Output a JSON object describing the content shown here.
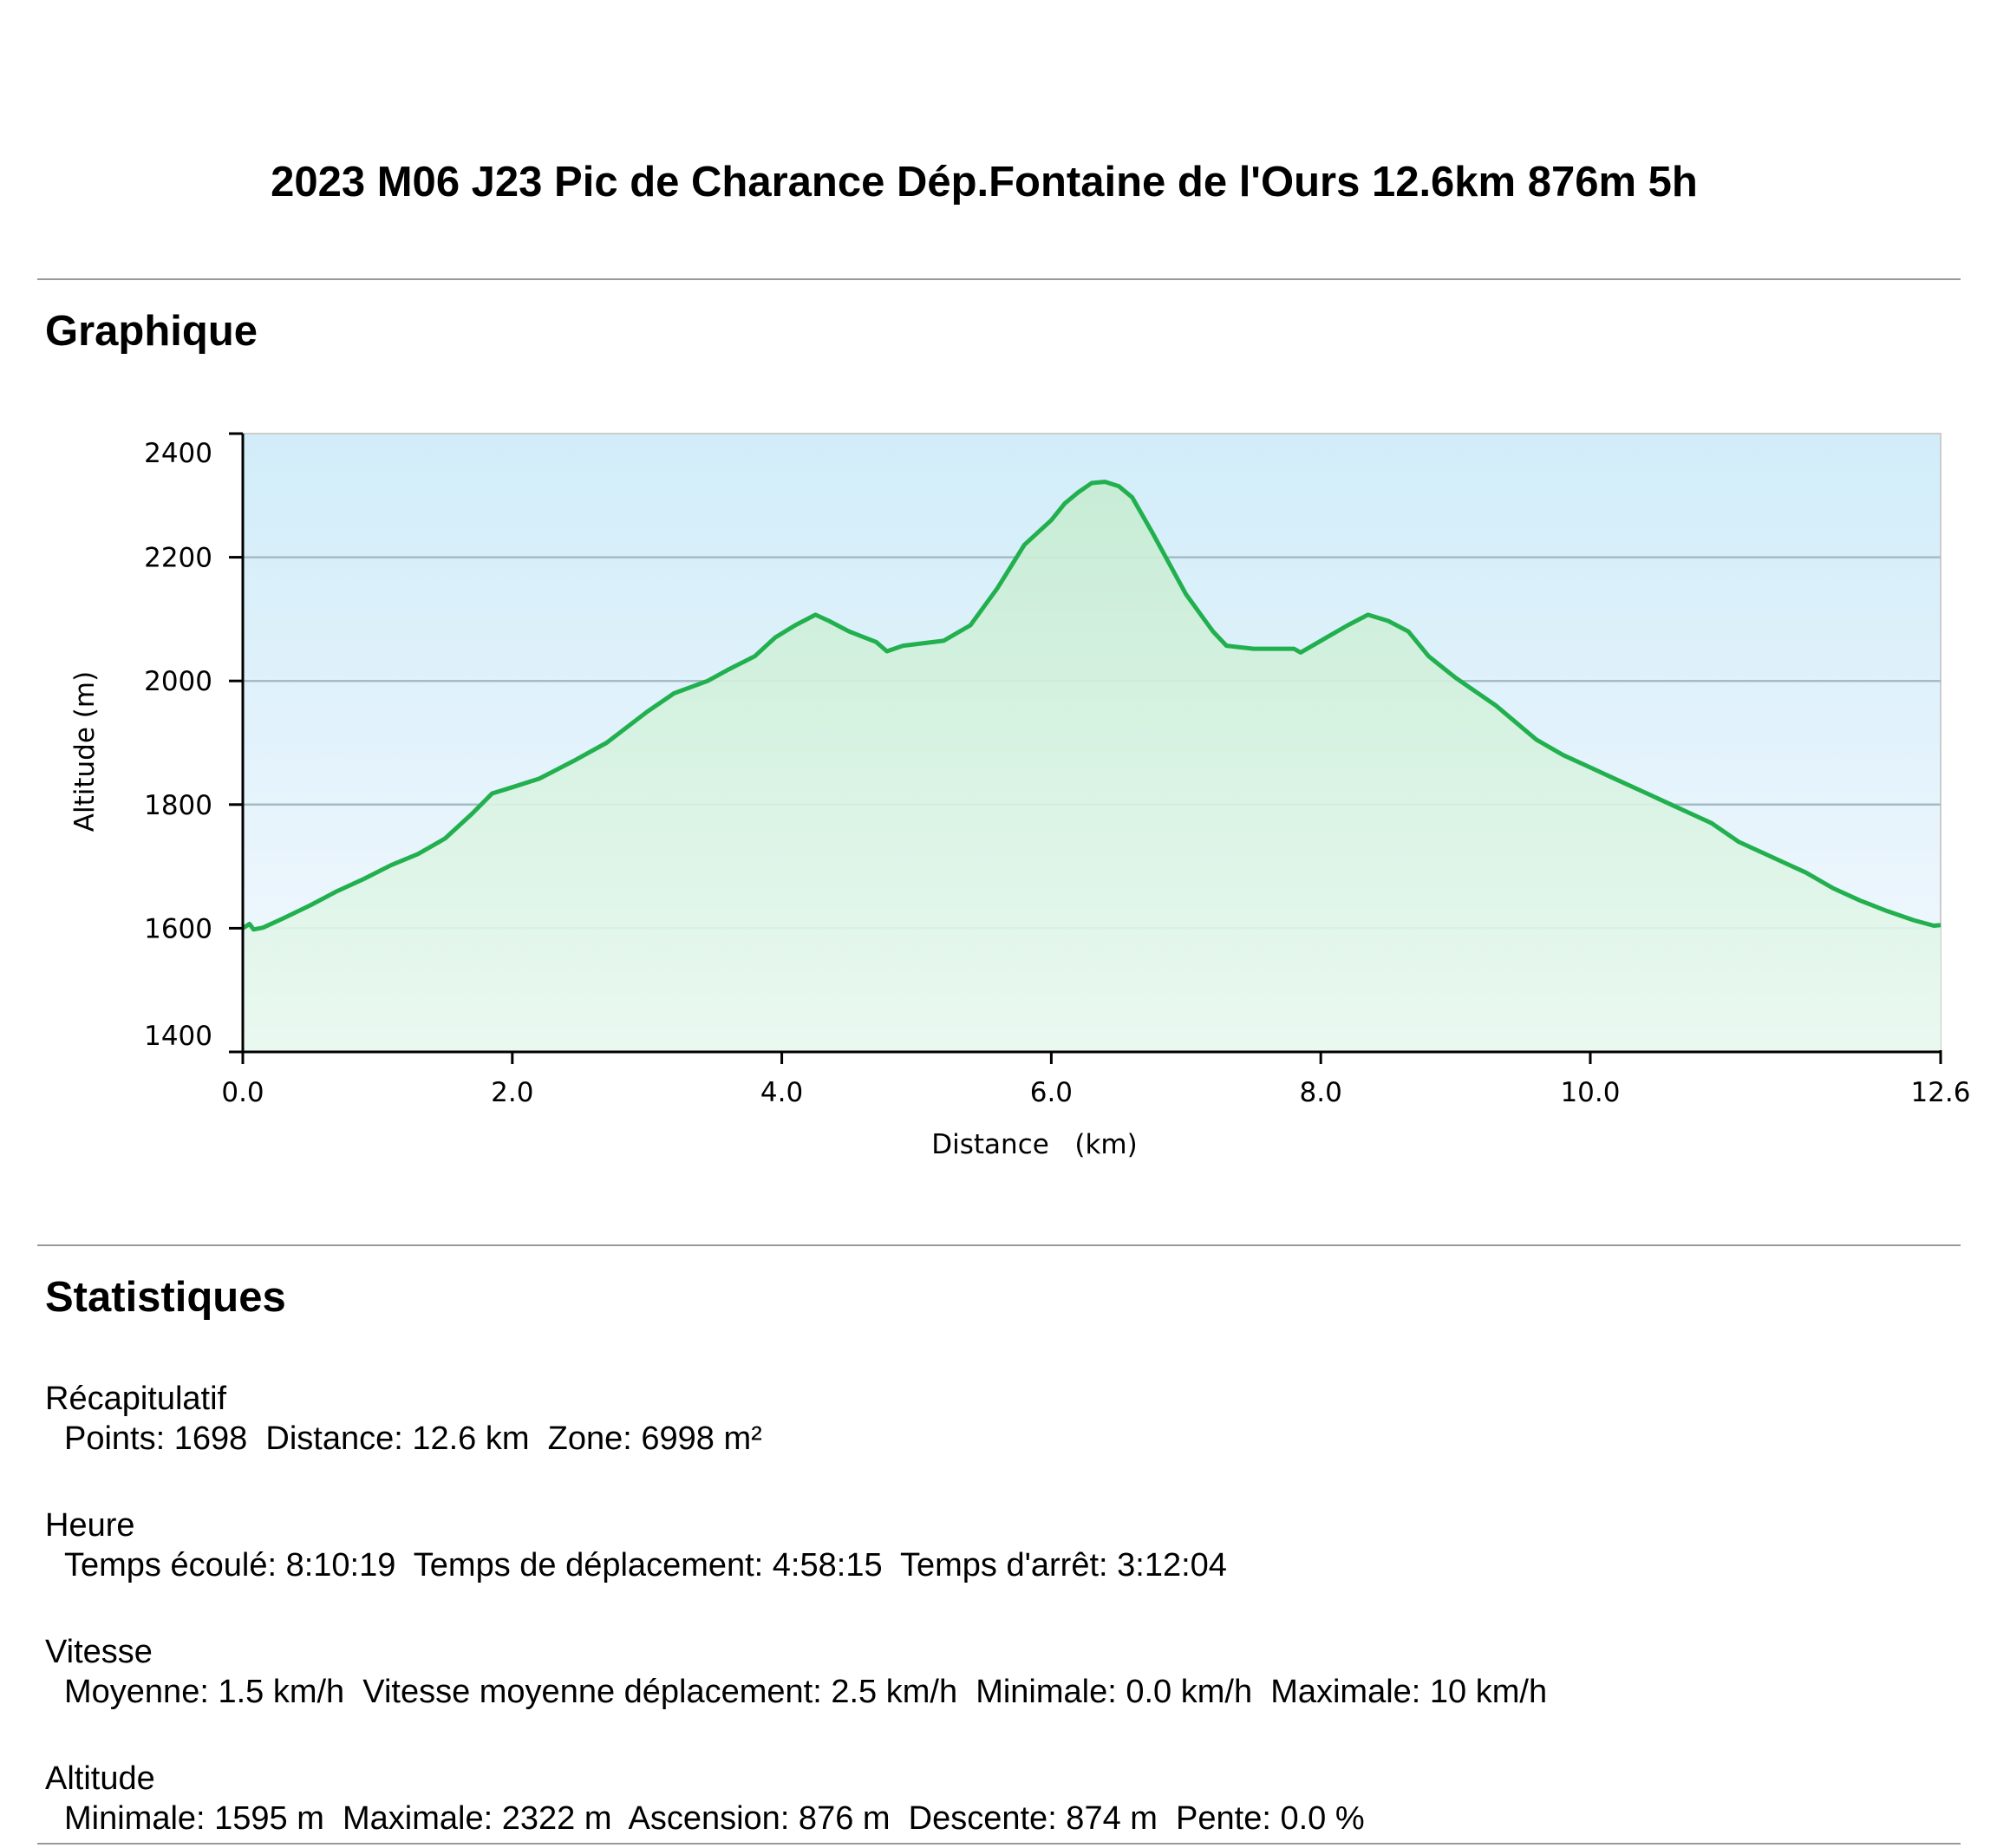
{
  "page": {
    "title": "2023 M06 J23 Pic de Charance Dép.Fontaine de l'Ours 12.6km 876m 5h"
  },
  "sections": {
    "graph_heading": "Graphique",
    "stats_heading": "Statistiques"
  },
  "chart_data": {
    "type": "area",
    "xlabel": "Distance   (km)",
    "ylabel": "Altitude (m)",
    "xlim": [
      0,
      12.6
    ],
    "ylim": [
      1400,
      2400
    ],
    "x_ticks": [
      "0.0",
      "2.0",
      "4.0",
      "6.0",
      "8.0",
      "10.0",
      "12.6"
    ],
    "x_tick_values": [
      0,
      2,
      4,
      6,
      8,
      10,
      12.6
    ],
    "y_ticks": [
      "2400",
      "2200",
      "2000",
      "1800",
      "1600",
      "1400"
    ],
    "y_tick_values": [
      2400,
      2200,
      2000,
      1800,
      1600,
      1400
    ],
    "grid": true,
    "colors": {
      "line": "#22b04f",
      "fill_top": "#c6ecd2",
      "bg_top": "#d1edf9",
      "bg_bottom": "#f4f8fe",
      "grid": "#a5bcc6"
    },
    "series": [
      {
        "x": [
          0,
          0.05,
          0.08,
          0.15,
          0.3,
          0.5,
          0.7,
          0.9,
          1.1,
          1.3,
          1.5,
          1.7,
          1.85,
          2.0,
          2.2,
          2.45,
          2.7,
          3.0,
          3.2,
          3.45,
          3.6,
          3.8,
          3.95,
          4.1,
          4.25,
          4.35,
          4.5,
          4.7,
          4.78,
          4.9,
          5.2,
          5.4,
          5.6,
          5.8,
          6.0,
          6.1,
          6.2,
          6.3,
          6.4,
          6.5,
          6.6,
          6.75,
          7.0,
          7.2,
          7.3,
          7.5,
          7.7,
          7.8,
          7.85,
          8.0,
          8.2,
          8.35,
          8.5,
          8.65,
          8.8,
          9.0,
          9.3,
          9.6,
          9.8,
          10.0,
          10.2,
          10.4,
          10.6,
          10.75,
          10.9,
          11.1,
          11.4,
          11.6,
          11.8,
          12.0,
          12.2,
          12.4,
          12.55,
          12.6
        ],
        "y": [
          1600,
          1607,
          1598,
          1601,
          1616,
          1637,
          1660,
          1680,
          1702,
          1720,
          1745,
          1785,
          1818,
          1828,
          1842,
          1870,
          1900,
          1950,
          1980,
          2000,
          2018,
          2040,
          2070,
          2090,
          2107,
          2097,
          2080,
          2063,
          2048,
          2057,
          2065,
          2090,
          2150,
          2220,
          2260,
          2287,
          2305,
          2320,
          2322,
          2315,
          2297,
          2240,
          2140,
          2080,
          2057,
          2052,
          2052,
          2052,
          2046,
          2065,
          2090,
          2107,
          2097,
          2080,
          2040,
          2005,
          1960,
          1905,
          1880,
          1860,
          1840,
          1820,
          1800,
          1785,
          1770,
          1740,
          1710,
          1690,
          1665,
          1645,
          1628,
          1613,
          1604,
          1605
        ]
      }
    ]
  },
  "stats": [
    {
      "heading": "Récapitulatif",
      "line": "Points: 1698  Distance: 12.6 km  Zone: 6998 m²"
    },
    {
      "heading": "Heure",
      "line": "Temps écoulé: 8:10:19  Temps de déplacement: 4:58:15  Temps d'arrêt: 3:12:04"
    },
    {
      "heading": "Vitesse",
      "line": "Moyenne: 1.5 km/h  Vitesse moyenne déplacement: 2.5 km/h  Minimale: 0.0 km/h  Maximale: 10 km/h"
    },
    {
      "heading": "Altitude",
      "line": "Minimale: 1595 m  Maximale: 2322 m  Ascension: 876 m  Descente: 874 m  Pente: 0.0 %"
    }
  ]
}
